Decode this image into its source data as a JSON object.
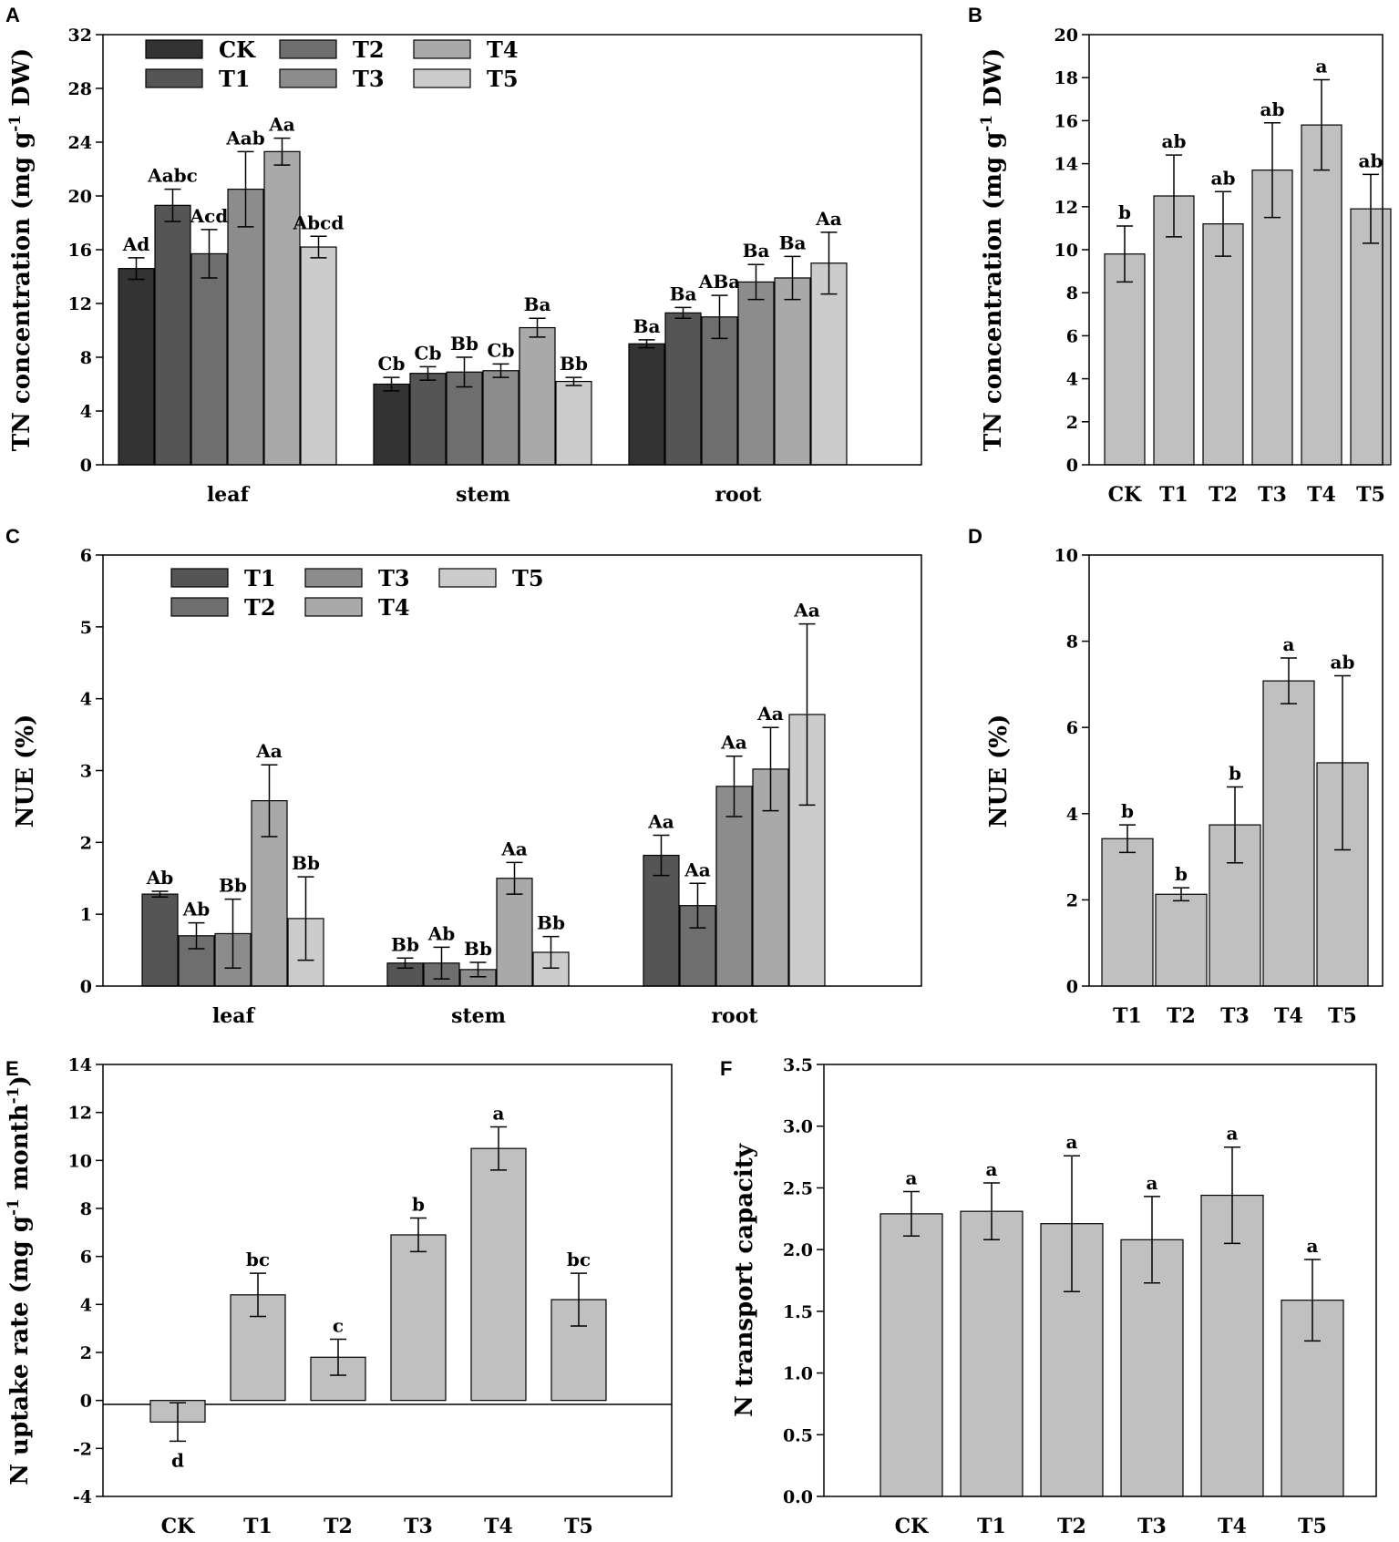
{
  "colors": {
    "CK": "#333333",
    "T1": "#555555",
    "T2": "#6e6e6e",
    "T3": "#8c8c8c",
    "T4": "#a9a9a9",
    "T5": "#cccccc",
    "single": "#c0c0c0"
  },
  "chart_data": [
    {
      "panel": "A",
      "type": "bar",
      "ylabel": "TN concentration (mg g-1 DW)",
      "ylabel_parts": [
        "TN concentration (mg g",
        "-1",
        " DW)"
      ],
      "ylim": [
        0,
        32
      ],
      "yticks": [
        "0",
        "4",
        "8",
        "12",
        "16",
        "20",
        "24",
        "28",
        "32"
      ],
      "categories": [
        "leaf",
        "stem",
        "root"
      ],
      "legend": {
        "placement": "top-left",
        "rows": [
          [
            "CK",
            "T2",
            "T4"
          ],
          [
            "T1",
            "T3",
            "T5"
          ]
        ]
      },
      "series": [
        {
          "name": "CK",
          "values": [
            14.6,
            6.0,
            9.0
          ],
          "errors": [
            0.8,
            0.5,
            0.3
          ],
          "labels": [
            "Ad",
            "Cb",
            "Ba"
          ]
        },
        {
          "name": "T1",
          "values": [
            19.3,
            6.8,
            11.3
          ],
          "errors": [
            1.2,
            0.5,
            0.4
          ],
          "labels": [
            "Aabc",
            "Cb",
            "Ba"
          ]
        },
        {
          "name": "T2",
          "values": [
            15.7,
            6.9,
            11.0
          ],
          "errors": [
            1.8,
            1.1,
            1.6
          ],
          "labels": [
            "Acd",
            "Bb",
            "ABa"
          ]
        },
        {
          "name": "T3",
          "values": [
            20.5,
            7.0,
            13.6
          ],
          "errors": [
            2.8,
            0.5,
            1.3
          ],
          "labels": [
            "Aab",
            "Cb",
            "Ba"
          ]
        },
        {
          "name": "T4",
          "values": [
            23.3,
            10.2,
            13.9
          ],
          "errors": [
            1.0,
            0.7,
            1.6
          ],
          "labels": [
            "Aa",
            "Ba",
            "Ba"
          ]
        },
        {
          "name": "T5",
          "values": [
            16.2,
            6.2,
            15.0
          ],
          "errors": [
            0.8,
            0.3,
            2.3
          ],
          "labels": [
            "Abcd",
            "Bb",
            "Aa"
          ]
        }
      ]
    },
    {
      "panel": "B",
      "type": "bar",
      "ylabel": "TN concentration (mg g-1 DW)",
      "ylabel_parts": [
        "TN concentration (mg g",
        "-1",
        " DW)"
      ],
      "ylim": [
        0,
        20
      ],
      "yticks": [
        "0",
        "2",
        "4",
        "6",
        "8",
        "10",
        "12",
        "14",
        "16",
        "18",
        "20"
      ],
      "categories": [
        "CK",
        "T1",
        "T2",
        "T3",
        "T4",
        "T5"
      ],
      "values": [
        9.8,
        12.5,
        11.2,
        13.7,
        15.8,
        11.9
      ],
      "errors": [
        1.3,
        1.9,
        1.5,
        2.2,
        2.1,
        1.6
      ],
      "labels": [
        "b",
        "ab",
        "ab",
        "ab",
        "a",
        "ab"
      ]
    },
    {
      "panel": "C",
      "type": "bar",
      "ylabel": "NUE (%)",
      "ylim": [
        0,
        6
      ],
      "yticks": [
        "0",
        "1",
        "2",
        "3",
        "4",
        "5",
        "6"
      ],
      "categories": [
        "leaf",
        "stem",
        "root"
      ],
      "legend": {
        "placement": "top-left",
        "rows": [
          [
            "T1",
            "T3",
            "T5"
          ],
          [
            "T2",
            "T4"
          ]
        ]
      },
      "series": [
        {
          "name": "T1",
          "values": [
            1.28,
            0.32,
            1.82
          ],
          "errors": [
            0.04,
            0.07,
            0.28
          ],
          "labels": [
            "Ab",
            "Bb",
            "Aa"
          ]
        },
        {
          "name": "T2",
          "values": [
            0.7,
            0.32,
            1.12
          ],
          "errors": [
            0.18,
            0.22,
            0.31
          ],
          "labels": [
            "Ab",
            "Ab",
            "Aa"
          ]
        },
        {
          "name": "T3",
          "values": [
            0.73,
            0.23,
            2.78
          ],
          "errors": [
            0.48,
            0.1,
            0.42
          ],
          "labels": [
            "Bb",
            "Bb",
            "Aa"
          ]
        },
        {
          "name": "T4",
          "values": [
            2.58,
            1.5,
            3.02
          ],
          "errors": [
            0.5,
            0.22,
            0.58
          ],
          "labels": [
            "Aa",
            "Aa",
            "Aa"
          ]
        },
        {
          "name": "T5",
          "values": [
            0.94,
            0.47,
            3.78
          ],
          "errors": [
            0.58,
            0.22,
            1.26
          ],
          "labels": [
            "Bb",
            "Bb",
            "Aa"
          ]
        }
      ]
    },
    {
      "panel": "D",
      "type": "bar",
      "ylabel": "NUE (%)",
      "ylim": [
        0,
        10
      ],
      "yticks": [
        "0",
        "2",
        "4",
        "6",
        "8",
        "10"
      ],
      "categories": [
        "T1",
        "T2",
        "T3",
        "T4",
        "T5"
      ],
      "values": [
        3.42,
        2.13,
        3.74,
        7.08,
        5.18
      ],
      "errors": [
        0.32,
        0.15,
        0.88,
        0.53,
        2.02
      ],
      "labels": [
        "b",
        "b",
        "b",
        "a",
        "ab"
      ]
    },
    {
      "panel": "E",
      "type": "bar",
      "ylabel": "N uptake rate (mg g-1 month-1)",
      "ylabel_parts": [
        "N uptake rate (mg g",
        "-1",
        " month",
        "-1",
        ")"
      ],
      "ylim": [
        -4,
        14
      ],
      "yticks": [
        "-4",
        "-2",
        "0",
        "2",
        "4",
        "6",
        "8",
        "10",
        "12",
        "14"
      ],
      "categories": [
        "CK",
        "T1",
        "T2",
        "T3",
        "T4",
        "T5"
      ],
      "values": [
        -0.9,
        4.4,
        1.8,
        6.9,
        10.5,
        4.2
      ],
      "errors": [
        0.8,
        0.9,
        0.75,
        0.7,
        0.9,
        1.1
      ],
      "labels": [
        "d",
        "bc",
        "c",
        "b",
        "a",
        "bc"
      ]
    },
    {
      "panel": "F",
      "type": "bar",
      "ylabel": "N transport capacity",
      "ylim": [
        0,
        3.5
      ],
      "yticks": [
        "0.0",
        "0.5",
        "1.0",
        "1.5",
        "2.0",
        "2.5",
        "3.0",
        "3.5"
      ],
      "categories": [
        "CK",
        "T1",
        "T2",
        "T3",
        "T4",
        "T5"
      ],
      "values": [
        2.29,
        2.31,
        2.21,
        2.08,
        2.44,
        1.59
      ],
      "errors": [
        0.18,
        0.23,
        0.55,
        0.35,
        0.39,
        0.33
      ],
      "labels": [
        "a",
        "a",
        "a",
        "a",
        "a",
        "a"
      ]
    }
  ]
}
